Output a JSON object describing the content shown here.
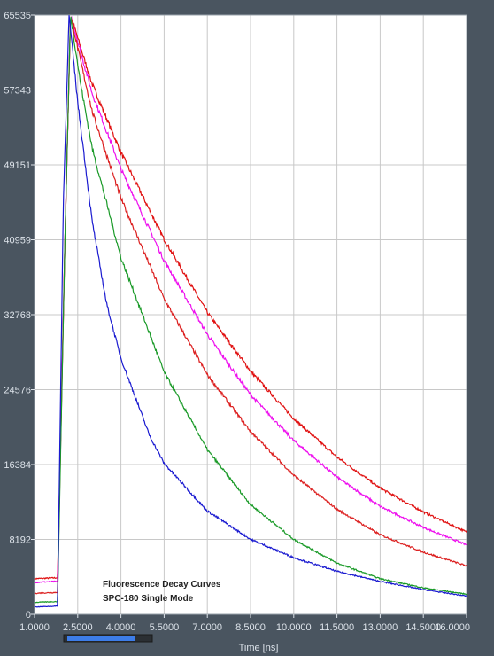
{
  "chart_data": {
    "type": "line",
    "annotation_lines": [
      "Fluorescence Decay Curves",
      "SPC-180 Single Mode"
    ],
    "xlabel": "Time [ns]",
    "ylabel": "",
    "xlim": [
      1.0,
      16.0
    ],
    "ylim": [
      0,
      65535
    ],
    "x_ticks": [
      1.0,
      2.5,
      4.0,
      5.5,
      7.0,
      8.5,
      10.0,
      11.5,
      13.0,
      14.5,
      16.0
    ],
    "x_tick_labels": [
      "1.0000",
      "2.5000",
      "4.0000",
      "5.5000",
      "7.0000",
      "8.5000",
      "10.0000",
      "11.5000",
      "13.0000",
      "14.5000",
      "16.0000"
    ],
    "y_ticks": [
      0,
      8192,
      16384,
      24576,
      32768,
      40959,
      49151,
      57343,
      65535
    ],
    "y_tick_labels": [
      "0",
      "8192",
      "16384",
      "24576",
      "32768",
      "40959",
      "49151",
      "57343",
      "65535"
    ],
    "grid": true,
    "background": "#ffffff",
    "grid_color": "#c8c8c8",
    "frame_color": "#4a5560",
    "series": [
      {
        "color": "#e01010",
        "x": [
          1.0,
          1.8,
          2.05,
          2.25,
          2.6,
          3.0,
          4.0,
          5.5,
          7.0,
          8.5,
          10.0,
          11.5,
          13.0,
          14.5,
          16.0
        ],
        "values": [
          3900,
          4000,
          40000,
          65535,
          62000,
          58000,
          50500,
          41000,
          33000,
          26600,
          21400,
          17200,
          13800,
          11200,
          9000
        ]
      },
      {
        "color": "#ee10ee",
        "x": [
          1.0,
          1.8,
          2.05,
          2.25,
          2.6,
          3.0,
          4.0,
          5.5,
          7.0,
          8.5,
          10.0,
          11.5,
          13.0,
          14.5,
          16.0
        ],
        "values": [
          3500,
          3600,
          40000,
          65535,
          61500,
          57000,
          48700,
          38700,
          30600,
          24000,
          19000,
          15000,
          11800,
          9500,
          7600
        ]
      },
      {
        "color": "#dc2020",
        "x": [
          1.0,
          1.8,
          2.05,
          2.25,
          2.6,
          3.0,
          4.0,
          5.5,
          7.0,
          8.5,
          10.0,
          11.5,
          13.0,
          14.5,
          16.0
        ],
        "values": [
          2300,
          2400,
          40000,
          65535,
          60500,
          55000,
          45500,
          34500,
          26200,
          20000,
          15200,
          11500,
          8700,
          6800,
          5300
        ]
      },
      {
        "color": "#1a9a28",
        "x": [
          1.0,
          1.8,
          2.05,
          2.25,
          2.6,
          3.0,
          4.0,
          5.5,
          7.0,
          8.5,
          10.0,
          11.5,
          13.0,
          14.5,
          16.0
        ],
        "values": [
          1300,
          1400,
          40000,
          65535,
          58000,
          51000,
          39000,
          26500,
          18000,
          12000,
          8200,
          5600,
          3900,
          2900,
          2200
        ]
      },
      {
        "color": "#1a1ad0",
        "x": [
          1.0,
          1.8,
          2.0,
          2.2,
          2.5,
          3.0,
          3.5,
          4.0,
          5.0,
          5.5,
          7.0,
          8.5,
          10.0,
          11.5,
          13.0,
          14.5,
          16.0
        ],
        "values": [
          800,
          900,
          45000,
          65535,
          56000,
          43000,
          34000,
          28000,
          19500,
          16500,
          11300,
          8200,
          6200,
          4700,
          3600,
          2700,
          2000
        ]
      }
    ]
  }
}
